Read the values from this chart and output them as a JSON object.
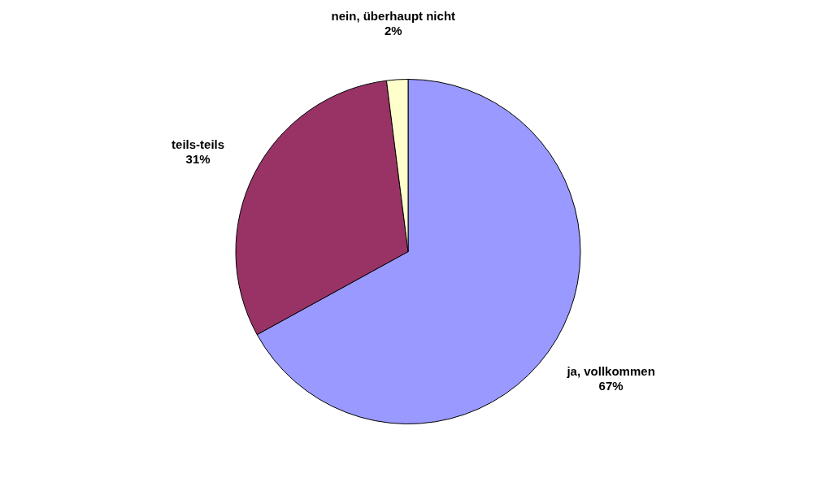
{
  "chart_data": {
    "type": "pie",
    "categories": [
      "ja, vollkommen",
      "teils-teils",
      "nein, überhaupt nicht"
    ],
    "values": [
      67,
      31,
      2
    ],
    "colors": [
      "#9999ff",
      "#993366",
      "#ffffcc"
    ],
    "value_labels": [
      "67%",
      "31%",
      "2%"
    ]
  }
}
